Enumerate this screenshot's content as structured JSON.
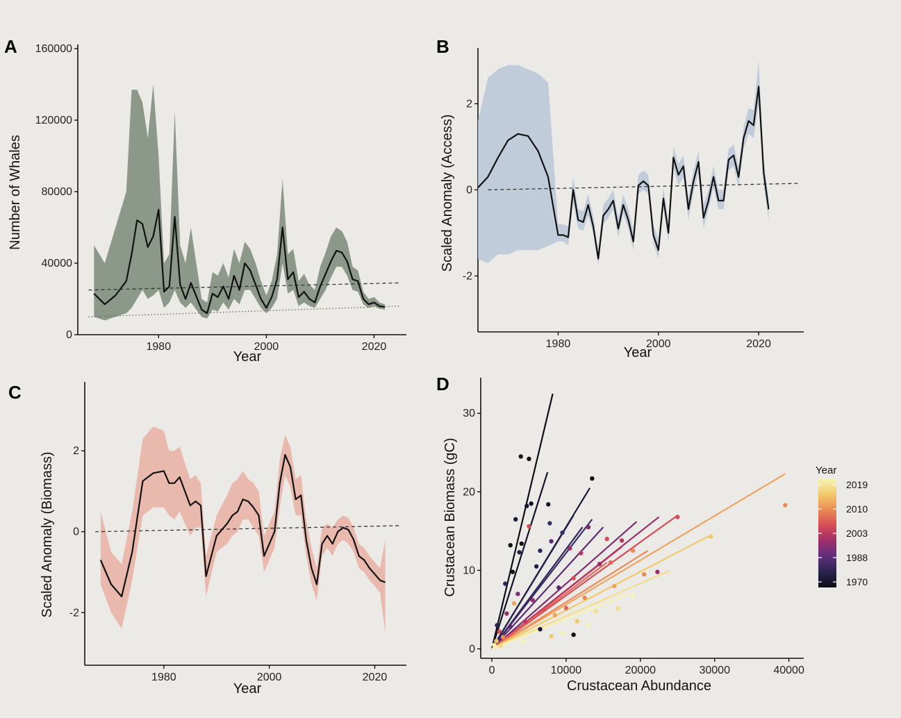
{
  "chart_data": [
    {
      "panel": "A",
      "type": "line",
      "xlabel": "Year",
      "ylabel": "Number of Whales",
      "xlim": [
        1965,
        2026
      ],
      "ylim": [
        0,
        160000
      ],
      "xticks": [
        1980,
        2000,
        2020
      ],
      "yticks": [
        0,
        40000,
        80000,
        120000,
        160000
      ],
      "grid": false,
      "band_color": "#7b8a78",
      "line_color": "#111111",
      "x": [
        1968,
        1970,
        1972,
        1974,
        1975,
        1976,
        1977,
        1978,
        1979,
        1980,
        1981,
        1982,
        1983,
        1984,
        1985,
        1986,
        1988,
        1989,
        1990,
        1991,
        1992,
        1993,
        1994,
        1995,
        1996,
        1997,
        1998,
        1999,
        2000,
        2001,
        2002,
        2003,
        2004,
        2005,
        2006,
        2007,
        2008,
        2009,
        2010,
        2011,
        2012,
        2013,
        2014,
        2015,
        2016,
        2017,
        2018,
        2019,
        2020,
        2021,
        2022
      ],
      "values": [
        23000,
        17000,
        22000,
        30000,
        45000,
        64000,
        62000,
        49000,
        55000,
        70000,
        24000,
        27000,
        66000,
        28000,
        20000,
        29000,
        14000,
        12000,
        23000,
        21000,
        27000,
        20000,
        33000,
        25000,
        40000,
        36000,
        28000,
        20000,
        15000,
        21000,
        31000,
        60000,
        31000,
        35000,
        21000,
        24000,
        20000,
        18000,
        27000,
        34000,
        41000,
        47000,
        46000,
        41000,
        31000,
        30000,
        20000,
        17000,
        18000,
        16000,
        15500
      ],
      "band_lower": [
        10000,
        8000,
        10000,
        12000,
        15000,
        20000,
        25000,
        20000,
        22000,
        25000,
        15000,
        18000,
        25000,
        18000,
        15000,
        18000,
        10000,
        9000,
        14000,
        13000,
        18000,
        14000,
        20000,
        17000,
        25000,
        25000,
        20000,
        15000,
        12000,
        15000,
        20000,
        40000,
        23000,
        25000,
        16000,
        18000,
        16000,
        15000,
        20000,
        25000,
        32000,
        38000,
        38000,
        33000,
        25000,
        24000,
        17000,
        15000,
        16000,
        14500,
        14000
      ],
      "band_upper": [
        50000,
        40000,
        60000,
        80000,
        137000,
        137000,
        130000,
        110000,
        140000,
        100000,
        40000,
        45000,
        125000,
        50000,
        40000,
        60000,
        20000,
        18000,
        35000,
        33000,
        40000,
        32000,
        48000,
        40000,
        52000,
        48000,
        40000,
        30000,
        22000,
        30000,
        45000,
        87000,
        45000,
        48000,
        30000,
        34000,
        28000,
        25000,
        38000,
        46000,
        55000,
        60000,
        58000,
        52000,
        38000,
        36000,
        24000,
        20000,
        21000,
        18000,
        17000
      ],
      "ref_dashed": [
        25000,
        29000
      ],
      "ref_dotted": [
        10000,
        16000
      ]
    },
    {
      "panel": "B",
      "type": "line",
      "xlabel": "Year",
      "ylabel": "Scaled Anomaly (Access)",
      "xlim": [
        1964,
        2029
      ],
      "ylim": [
        -3.3,
        3.2
      ],
      "xticks": [
        1980,
        2000,
        2020
      ],
      "yticks": [
        -2,
        0,
        2
      ],
      "grid": false,
      "band_color": "#b9c7d6",
      "line_color": "#111111",
      "x": [
        1964,
        1966,
        1968,
        1970,
        1972,
        1974,
        1976,
        1978,
        1980,
        1981,
        1982,
        1983,
        1984,
        1985,
        1986,
        1987,
        1988,
        1989,
        1990,
        1991,
        1992,
        1993,
        1994,
        1995,
        1996,
        1997,
        1998,
        1999,
        2000,
        2001,
        2002,
        2003,
        2004,
        2005,
        2006,
        2007,
        2008,
        2009,
        2010,
        2011,
        2012,
        2013,
        2014,
        2015,
        2016,
        2017,
        2018,
        2019,
        2020,
        2021,
        2022
      ],
      "values": [
        0.05,
        0.3,
        0.75,
        1.15,
        1.3,
        1.25,
        0.9,
        0.3,
        -1.05,
        -1.05,
        -1.1,
        0.0,
        -0.7,
        -0.75,
        -0.35,
        -0.85,
        -1.6,
        -0.6,
        -0.45,
        -0.25,
        -0.9,
        -0.35,
        -0.7,
        -1.2,
        0.1,
        0.2,
        0.1,
        -1.05,
        -1.4,
        -0.2,
        -1.0,
        0.75,
        0.35,
        0.55,
        -0.45,
        0.2,
        0.65,
        -0.65,
        -0.25,
        0.3,
        -0.25,
        -0.25,
        0.7,
        0.8,
        0.3,
        1.2,
        1.6,
        1.5,
        2.4,
        0.4,
        -0.45
      ],
      "band_lower": [
        -1.6,
        -1.7,
        -1.5,
        -1.5,
        -1.4,
        -1.4,
        -1.4,
        -1.3,
        -1.2,
        -1.2,
        -1.3,
        -0.3,
        -0.9,
        -0.95,
        -0.6,
        -1.0,
        -1.75,
        -0.8,
        -0.65,
        -0.45,
        -1.1,
        -0.55,
        -0.9,
        -1.4,
        -0.1,
        0.0,
        -0.1,
        -1.25,
        -1.6,
        -0.4,
        -1.2,
        0.5,
        0.1,
        0.3,
        -0.7,
        -0.05,
        0.4,
        -0.9,
        -0.45,
        0.05,
        -0.45,
        -0.45,
        0.45,
        0.55,
        0.05,
        0.95,
        1.3,
        1.2,
        2.0,
        0.1,
        -0.7
      ],
      "band_upper": [
        1.6,
        2.6,
        2.8,
        2.9,
        2.9,
        2.8,
        2.7,
        2.5,
        -0.8,
        -0.8,
        -0.85,
        0.3,
        -0.45,
        -0.5,
        -0.1,
        -0.6,
        -1.4,
        -0.35,
        -0.2,
        0.0,
        -0.65,
        -0.1,
        -0.45,
        -0.95,
        0.35,
        0.45,
        0.35,
        -0.8,
        -1.15,
        0.05,
        -0.75,
        1.0,
        0.6,
        0.8,
        -0.2,
        0.45,
        0.9,
        -0.35,
        0.0,
        0.55,
        0.0,
        0.0,
        0.95,
        1.05,
        0.55,
        1.45,
        1.9,
        1.85,
        3.0,
        0.7,
        -0.2
      ],
      "ref_dashed": [
        0.0,
        0.15
      ]
    },
    {
      "panel": "C",
      "type": "line",
      "xlabel": "Year",
      "ylabel": "Scaled Anomaly (Biomass)",
      "xlim": [
        1965,
        2026
      ],
      "ylim": [
        -3.3,
        3.6
      ],
      "xticks": [
        1980,
        2000,
        2020
      ],
      "yticks": [
        -2,
        0,
        2
      ],
      "grid": false,
      "band_color": "#e9b0a3",
      "line_color": "#111111",
      "x": [
        1968,
        1970,
        1972,
        1974,
        1976,
        1978,
        1980,
        1981,
        1982,
        1983,
        1984,
        1985,
        1986,
        1987,
        1988,
        1990,
        1992,
        1993,
        1994,
        1995,
        1996,
        1997,
        1998,
        1999,
        2000,
        2001,
        2002,
        2003,
        2004,
        2005,
        2006,
        2007,
        2008,
        2009,
        2010,
        2011,
        2012,
        2013,
        2014,
        2015,
        2016,
        2017,
        2018,
        2019,
        2020,
        2021,
        2022
      ],
      "values": [
        -0.7,
        -1.3,
        -1.6,
        -0.5,
        1.25,
        1.45,
        1.5,
        1.2,
        1.2,
        1.35,
        1.0,
        0.65,
        0.75,
        0.65,
        -1.1,
        -0.1,
        0.2,
        0.4,
        0.5,
        0.8,
        0.75,
        0.6,
        0.4,
        -0.6,
        -0.3,
        0.0,
        1.2,
        1.9,
        1.6,
        0.8,
        0.9,
        -0.2,
        -0.9,
        -1.3,
        -0.3,
        -0.1,
        -0.3,
        0.0,
        0.1,
        0.05,
        -0.2,
        -0.6,
        -0.7,
        -0.9,
        -1.05,
        -1.2,
        -1.25
      ],
      "band_lower": [
        -1.3,
        -2.0,
        -2.4,
        -1.2,
        0.4,
        0.6,
        0.6,
        0.4,
        0.3,
        0.5,
        0.2,
        -0.1,
        0.1,
        0.1,
        -1.6,
        -0.5,
        -0.3,
        -0.1,
        0.0,
        0.3,
        0.3,
        0.1,
        -0.1,
        -1.0,
        -0.7,
        -0.4,
        0.6,
        1.4,
        1.1,
        0.4,
        0.4,
        -0.6,
        -1.3,
        -1.7,
        -0.6,
        -0.4,
        -0.6,
        -0.3,
        -0.2,
        -0.3,
        -0.5,
        -0.9,
        -1.0,
        -1.2,
        -1.35,
        -1.5,
        -2.5
      ],
      "band_upper": [
        0.5,
        -0.5,
        -0.8,
        0.5,
        2.3,
        2.6,
        2.5,
        2.0,
        2.0,
        2.1,
        1.7,
        1.3,
        1.4,
        1.2,
        -0.6,
        0.4,
        0.9,
        1.2,
        1.3,
        1.5,
        1.3,
        1.2,
        1.0,
        -0.1,
        0.2,
        0.5,
        1.8,
        2.4,
        2.1,
        1.3,
        1.4,
        0.3,
        -0.4,
        -0.9,
        0.1,
        0.2,
        0.1,
        0.3,
        0.4,
        0.35,
        0.1,
        -0.3,
        -0.4,
        -0.6,
        -0.75,
        -0.9,
        -0.2
      ],
      "ref_dashed": [
        0.0,
        0.15
      ]
    },
    {
      "panel": "D",
      "type": "scatter",
      "xlabel": "Crustacean Abundance",
      "ylabel": "Crustacean Biomass (gC)",
      "xlim": [
        -1500,
        42000
      ],
      "ylim": [
        -1.2,
        34
      ],
      "xticks": [
        0,
        10000,
        20000,
        30000,
        40000
      ],
      "yticks": [
        0,
        10,
        20,
        30
      ],
      "grid": false,
      "legend": {
        "title": "Year",
        "position": "right",
        "ticks": [
          "2019",
          "2010",
          "2003",
          "1988",
          "1970"
        ],
        "colors": [
          "#f6f3b4",
          "#f3c86b",
          "#eb8a55",
          "#d64b57",
          "#9c2f6b",
          "#5d2f79",
          "#2a2350",
          "#0c0c14"
        ]
      },
      "regression_lines": [
        {
          "color": "#0d0d16",
          "x": [
            0,
            8200
          ],
          "y": [
            0,
            32.5
          ]
        },
        {
          "color": "#111226",
          "x": [
            0,
            7500
          ],
          "y": [
            0,
            22.5
          ]
        },
        {
          "color": "#1a1838",
          "x": [
            0,
            13200
          ],
          "y": [
            0,
            20.5
          ]
        },
        {
          "color": "#23204a",
          "x": [
            0,
            11000
          ],
          "y": [
            0,
            17.0
          ]
        },
        {
          "color": "#2e2558",
          "x": [
            0,
            12200
          ],
          "y": [
            0,
            15.5
          ]
        },
        {
          "color": "#3c2b66",
          "x": [
            0,
            13500
          ],
          "y": [
            0,
            16.5
          ]
        },
        {
          "color": "#5a2d72",
          "x": [
            0,
            15000
          ],
          "y": [
            0,
            15.5
          ]
        },
        {
          "color": "#7a2e6f",
          "x": [
            0,
            19500
          ],
          "y": [
            0,
            16.2
          ]
        },
        {
          "color": "#9c2f6b",
          "x": [
            0,
            22500
          ],
          "y": [
            0,
            16.8
          ]
        },
        {
          "color": "#b93662",
          "x": [
            0,
            17500
          ],
          "y": [
            0,
            13.0
          ]
        },
        {
          "color": "#d64b57",
          "x": [
            0,
            25000
          ],
          "y": [
            0,
            17.0
          ]
        },
        {
          "color": "#e26a55",
          "x": [
            0,
            15500
          ],
          "y": [
            0,
            11.0
          ]
        },
        {
          "color": "#eb8a55",
          "x": [
            0,
            21000
          ],
          "y": [
            0,
            12.5
          ]
        },
        {
          "color": "#f0a35f",
          "x": [
            0,
            39500
          ],
          "y": [
            0,
            22.3
          ]
        },
        {
          "color": "#f3c86b",
          "x": [
            0,
            29500
          ],
          "y": [
            0,
            14.5
          ]
        },
        {
          "color": "#f4dc8a",
          "x": [
            0,
            24000
          ],
          "y": [
            0,
            10.0
          ]
        },
        {
          "color": "#f6f3b4",
          "x": [
            0,
            18500
          ],
          "y": [
            0,
            7.0
          ]
        }
      ],
      "points": [
        {
          "x": 3900,
          "y": 24.5,
          "color": "#111111"
        },
        {
          "x": 5000,
          "y": 24.2,
          "color": "#111111"
        },
        {
          "x": 4700,
          "y": 18.2,
          "color": "#15152a"
        },
        {
          "x": 5300,
          "y": 18.5,
          "color": "#15152a"
        },
        {
          "x": 7600,
          "y": 18.4,
          "color": "#15152a"
        },
        {
          "x": 3200,
          "y": 16.5,
          "color": "#1a1838"
        },
        {
          "x": 4000,
          "y": 13.4,
          "color": "#111111"
        },
        {
          "x": 2500,
          "y": 13.2,
          "color": "#111111"
        },
        {
          "x": 3700,
          "y": 12.3,
          "color": "#23204a"
        },
        {
          "x": 6500,
          "y": 12.5,
          "color": "#2e2558"
        },
        {
          "x": 7800,
          "y": 16.0,
          "color": "#3c2b66"
        },
        {
          "x": 8000,
          "y": 13.7,
          "color": "#5a2d72"
        },
        {
          "x": 13500,
          "y": 21.7,
          "color": "#111111"
        },
        {
          "x": 13000,
          "y": 15.5,
          "color": "#7a2e6f"
        },
        {
          "x": 10500,
          "y": 12.8,
          "color": "#9c2f6b"
        },
        {
          "x": 15500,
          "y": 14.0,
          "color": "#d64b57"
        },
        {
          "x": 17500,
          "y": 13.8,
          "color": "#b93662"
        },
        {
          "x": 16000,
          "y": 11.0,
          "color": "#e26a55"
        },
        {
          "x": 19000,
          "y": 12.5,
          "color": "#eb8a55"
        },
        {
          "x": 22300,
          "y": 9.8,
          "color": "#9c2f6b"
        },
        {
          "x": 25000,
          "y": 16.8,
          "color": "#d64b57"
        },
        {
          "x": 29500,
          "y": 14.3,
          "color": "#f3c86b"
        },
        {
          "x": 39500,
          "y": 18.3,
          "color": "#eb8a55"
        },
        {
          "x": 19000,
          "y": 6.7,
          "color": "#f6f3b4"
        },
        {
          "x": 11000,
          "y": 9.0,
          "color": "#d64b57"
        },
        {
          "x": 12500,
          "y": 6.5,
          "color": "#eb8a55"
        },
        {
          "x": 9000,
          "y": 7.8,
          "color": "#5a2d72"
        },
        {
          "x": 6000,
          "y": 10.5,
          "color": "#23204a"
        },
        {
          "x": 2800,
          "y": 9.8,
          "color": "#111111"
        },
        {
          "x": 1800,
          "y": 8.3,
          "color": "#2e2558"
        },
        {
          "x": 3500,
          "y": 7.0,
          "color": "#7a2e6f"
        },
        {
          "x": 5500,
          "y": 6.2,
          "color": "#9c2f6b"
        },
        {
          "x": 7000,
          "y": 5.0,
          "color": "#d64b57"
        },
        {
          "x": 8500,
          "y": 4.3,
          "color": "#f0a35f"
        },
        {
          "x": 10000,
          "y": 5.2,
          "color": "#e26a55"
        },
        {
          "x": 14000,
          "y": 4.8,
          "color": "#f4dc8a"
        },
        {
          "x": 11500,
          "y": 3.5,
          "color": "#f3c86b"
        },
        {
          "x": 6500,
          "y": 2.5,
          "color": "#1a1838"
        },
        {
          "x": 4500,
          "y": 3.5,
          "color": "#b93662"
        },
        {
          "x": 2000,
          "y": 4.5,
          "color": "#9c2f6b"
        },
        {
          "x": 1000,
          "y": 2.2,
          "color": "#d64b57"
        },
        {
          "x": 600,
          "y": 1.0,
          "color": "#f3c86b"
        },
        {
          "x": 300,
          "y": 0.5,
          "color": "#f6f3b4"
        },
        {
          "x": 1500,
          "y": 1.5,
          "color": "#eb8a55"
        },
        {
          "x": 2500,
          "y": 2.8,
          "color": "#5a2d72"
        },
        {
          "x": 9500,
          "y": 2.0,
          "color": "#f6f3b4"
        },
        {
          "x": 11000,
          "y": 1.8,
          "color": "#111111"
        },
        {
          "x": 8000,
          "y": 1.6,
          "color": "#f3c86b"
        },
        {
          "x": 16500,
          "y": 8.0,
          "color": "#f0a35f"
        },
        {
          "x": 20500,
          "y": 9.5,
          "color": "#eb8a55"
        },
        {
          "x": 14500,
          "y": 10.8,
          "color": "#9c2f6b"
        },
        {
          "x": 12000,
          "y": 12.2,
          "color": "#b93662"
        },
        {
          "x": 9500,
          "y": 14.8,
          "color": "#3c2b66"
        },
        {
          "x": 5000,
          "y": 15.6,
          "color": "#d64b57"
        },
        {
          "x": 3000,
          "y": 5.8,
          "color": "#f0a35f"
        },
        {
          "x": 700,
          "y": 3.0,
          "color": "#2a2350"
        },
        {
          "x": 1200,
          "y": 0.3,
          "color": "#f4dc8a"
        },
        {
          "x": 4200,
          "y": 0.9,
          "color": "#f6f3b4"
        },
        {
          "x": 13000,
          "y": 3.0,
          "color": "#f6f3b4"
        },
        {
          "x": 17000,
          "y": 5.2,
          "color": "#f4dc8a"
        }
      ]
    }
  ]
}
